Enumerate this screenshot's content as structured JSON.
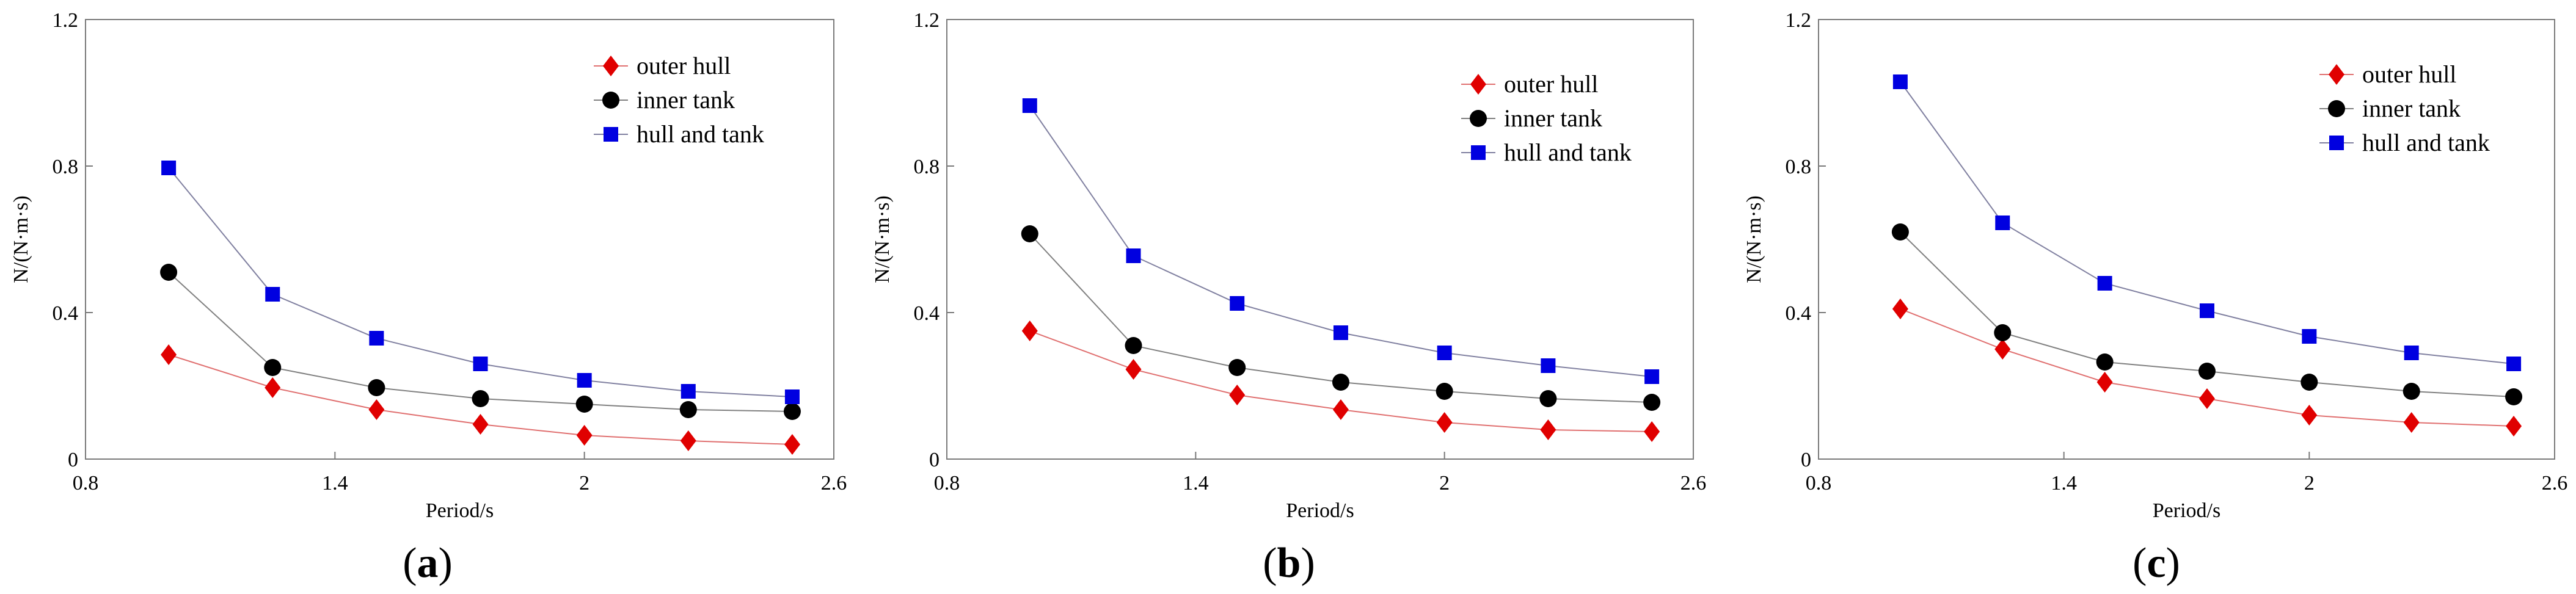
{
  "chart_data": [
    {
      "type": "line",
      "panel_label": "a",
      "xlabel": "Period/s",
      "ylabel": "N/(N·m·s)",
      "xlim": [
        0.8,
        2.6
      ],
      "ylim": [
        0,
        1.2
      ],
      "xticks": [
        "0.8",
        "1.4",
        "2",
        "2.6"
      ],
      "yticks": [
        "0",
        "0.4",
        "0.8",
        "1.2"
      ],
      "legend_position": "top-right",
      "x": [
        1.0,
        1.25,
        1.5,
        1.75,
        2.0,
        2.25,
        2.5
      ],
      "series": [
        {
          "name": "outer hull",
          "marker": "diamond",
          "color": "#e00000",
          "line_color": "#e07070",
          "values": [
            0.285,
            0.195,
            0.135,
            0.095,
            0.065,
            0.05,
            0.04
          ]
        },
        {
          "name": "inner tank",
          "marker": "circle",
          "color": "#000000",
          "line_color": "#808080",
          "values": [
            0.51,
            0.25,
            0.195,
            0.165,
            0.15,
            0.135,
            0.13
          ]
        },
        {
          "name": "hull and tank",
          "marker": "square",
          "color": "#0000e0",
          "line_color": "#8080a0",
          "values": [
            0.795,
            0.45,
            0.33,
            0.26,
            0.215,
            0.185,
            0.17
          ]
        }
      ]
    },
    {
      "type": "line",
      "panel_label": "b",
      "xlabel": "Period/s",
      "ylabel": "N/(N·m·s)",
      "xlim": [
        0.8,
        2.6
      ],
      "ylim": [
        0,
        1.2
      ],
      "xticks": [
        "0.8",
        "1.4",
        "2",
        "2.6"
      ],
      "yticks": [
        "0",
        "0.4",
        "0.8",
        "1.2"
      ],
      "legend_position": "top-right",
      "x": [
        1.0,
        1.25,
        1.5,
        1.75,
        2.0,
        2.25,
        2.5
      ],
      "series": [
        {
          "name": "outer hull",
          "marker": "diamond",
          "color": "#e00000",
          "line_color": "#e07070",
          "values": [
            0.35,
            0.245,
            0.175,
            0.135,
            0.1,
            0.08,
            0.075
          ]
        },
        {
          "name": "inner tank",
          "marker": "circle",
          "color": "#000000",
          "line_color": "#808080",
          "values": [
            0.615,
            0.31,
            0.25,
            0.21,
            0.185,
            0.165,
            0.155
          ]
        },
        {
          "name": "hull and tank",
          "marker": "square",
          "color": "#0000e0",
          "line_color": "#8080a0",
          "values": [
            0.965,
            0.555,
            0.425,
            0.345,
            0.29,
            0.255,
            0.225
          ]
        }
      ]
    },
    {
      "type": "line",
      "panel_label": "c",
      "xlabel": "Period/s",
      "ylabel": "N/(N·m·s)",
      "xlim": [
        0.8,
        2.6
      ],
      "ylim": [
        0,
        1.2
      ],
      "xticks": [
        "0.8",
        "1.4",
        "2",
        "2.6"
      ],
      "yticks": [
        "0",
        "0.4",
        "0.8",
        "1.2"
      ],
      "legend_position": "top-right",
      "x": [
        1.0,
        1.25,
        1.5,
        1.75,
        2.0,
        2.25,
        2.5
      ],
      "series": [
        {
          "name": "outer hull",
          "marker": "diamond",
          "color": "#e00000",
          "line_color": "#e07070",
          "values": [
            0.41,
            0.3,
            0.21,
            0.165,
            0.12,
            0.1,
            0.09
          ]
        },
        {
          "name": "inner tank",
          "marker": "circle",
          "color": "#000000",
          "line_color": "#808080",
          "values": [
            0.62,
            0.345,
            0.265,
            0.24,
            0.21,
            0.185,
            0.17
          ]
        },
        {
          "name": "hull and tank",
          "marker": "square",
          "color": "#0000e0",
          "line_color": "#8080a0",
          "values": [
            1.03,
            0.645,
            0.48,
            0.405,
            0.335,
            0.29,
            0.26
          ]
        }
      ]
    }
  ]
}
